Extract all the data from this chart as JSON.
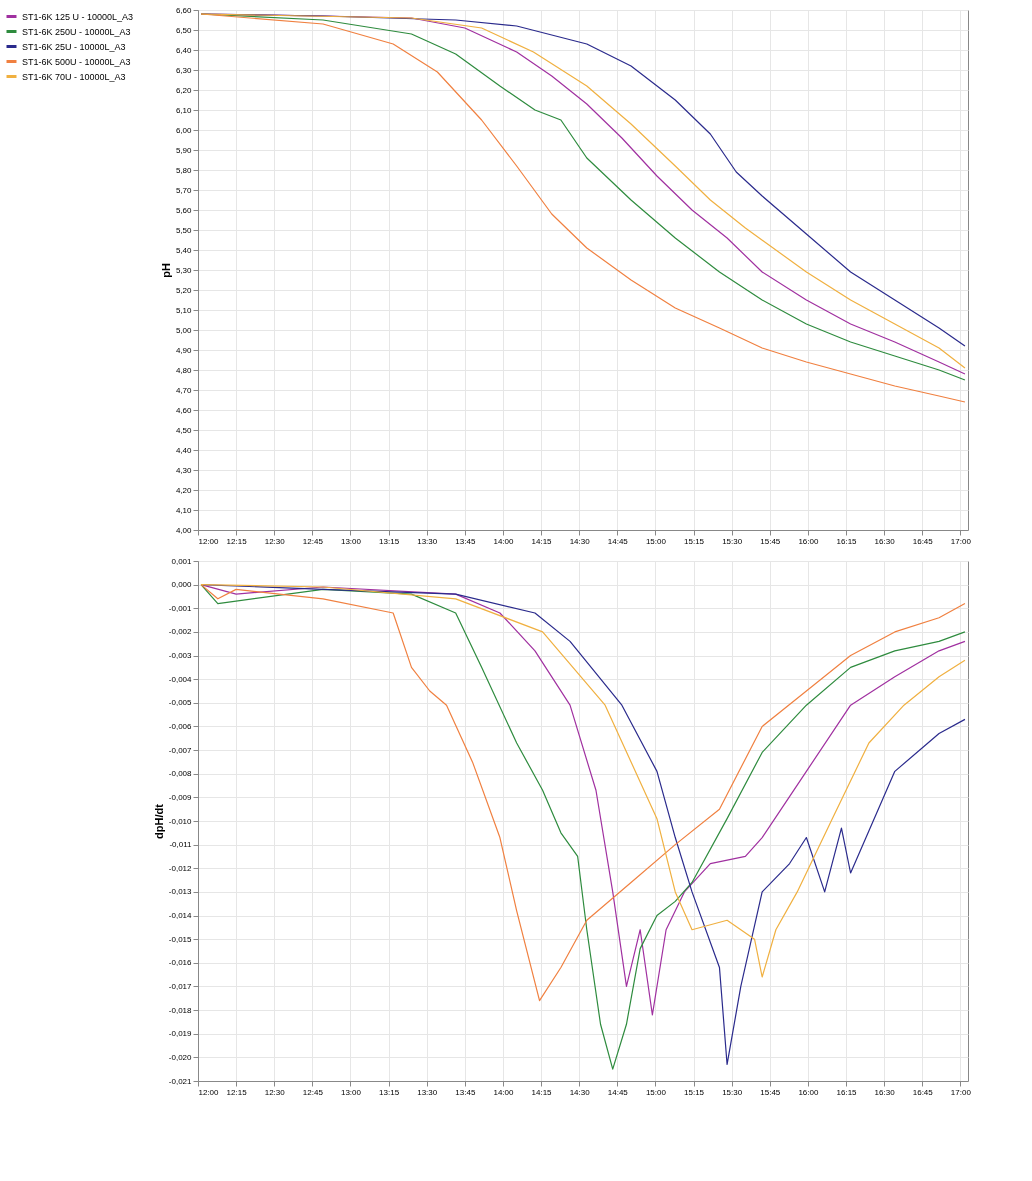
{
  "chart_data": [
    {
      "type": "line",
      "ylabel": "pH",
      "legend": "left",
      "grid": true,
      "line_style": "solid",
      "xlim": [
        12,
        17.05
      ],
      "xticks": [
        {
          "value": 12,
          "label": "12:00"
        },
        {
          "value": 12.25,
          "label": "12:15"
        },
        {
          "value": 12.5,
          "label": "12:30"
        },
        {
          "value": 12.75,
          "label": "12:45"
        },
        {
          "value": 13,
          "label": "13:00"
        },
        {
          "value": 13.25,
          "label": "13:15"
        },
        {
          "value": 13.5,
          "label": "13:30"
        },
        {
          "value": 13.75,
          "label": "13:45"
        },
        {
          "value": 14,
          "label": "14:00"
        },
        {
          "value": 14.25,
          "label": "14:15"
        },
        {
          "value": 14.5,
          "label": "14:30"
        },
        {
          "value": 14.75,
          "label": "14:45"
        },
        {
          "value": 15,
          "label": "15:00"
        },
        {
          "value": 15.25,
          "label": "15:15"
        },
        {
          "value": 15.5,
          "label": "15:30"
        },
        {
          "value": 15.75,
          "label": "15:45"
        },
        {
          "value": 16,
          "label": "16:00"
        },
        {
          "value": 16.25,
          "label": "16:15"
        },
        {
          "value": 16.5,
          "label": "16:30"
        },
        {
          "value": 16.75,
          "label": "16:45"
        },
        {
          "value": 17,
          "label": "17:00"
        }
      ],
      "ylim": [
        4.0,
        6.6
      ],
      "yticks": [
        {
          "value": 6.6,
          "label": "6,60"
        },
        {
          "value": 6.5,
          "label": "6,50"
        },
        {
          "value": 6.4,
          "label": "6,40"
        },
        {
          "value": 6.3,
          "label": "6,30"
        },
        {
          "value": 6.2,
          "label": "6,20"
        },
        {
          "value": 6.1,
          "label": "6,10"
        },
        {
          "value": 6.0,
          "label": "6,00"
        },
        {
          "value": 5.9,
          "label": "5,90"
        },
        {
          "value": 5.8,
          "label": "5,80"
        },
        {
          "value": 5.7,
          "label": "5,70"
        },
        {
          "value": 5.6,
          "label": "5,60"
        },
        {
          "value": 5.5,
          "label": "5,50"
        },
        {
          "value": 5.4,
          "label": "5,40"
        },
        {
          "value": 5.3,
          "label": "5,30"
        },
        {
          "value": 5.2,
          "label": "5,20"
        },
        {
          "value": 5.1,
          "label": "5,10"
        },
        {
          "value": 5.0,
          "label": "5,00"
        },
        {
          "value": 4.9,
          "label": "4,90"
        },
        {
          "value": 4.8,
          "label": "4,80"
        },
        {
          "value": 4.7,
          "label": "4,70"
        },
        {
          "value": 4.6,
          "label": "4,60"
        },
        {
          "value": 4.5,
          "label": "4,50"
        },
        {
          "value": 4.4,
          "label": "4,40"
        },
        {
          "value": 4.3,
          "label": "4,30"
        },
        {
          "value": 4.2,
          "label": "4,20"
        },
        {
          "value": 4.1,
          "label": "4,10"
        },
        {
          "value": 4.0,
          "label": "4,00"
        }
      ],
      "series": [
        {
          "name": "ST1-6K 125 U - 10000L_A3",
          "color": "#a030a0",
          "x": [
            12.02,
            12.82,
            13.4,
            13.75,
            14.09,
            14.32,
            14.55,
            14.78,
            15.01,
            15.24,
            15.47,
            15.7,
            15.99,
            16.28,
            16.57,
            16.86,
            17.03
          ],
          "values": [
            6.58,
            6.57,
            6.56,
            6.51,
            6.39,
            6.27,
            6.13,
            5.96,
            5.77,
            5.6,
            5.46,
            5.29,
            5.15,
            5.03,
            4.94,
            4.84,
            4.78
          ]
        },
        {
          "name": "ST1-6K 250U - 10000L_A3",
          "color": "#2e8b3e",
          "x": [
            12.02,
            12.82,
            13.4,
            13.69,
            13.98,
            14.21,
            14.38,
            14.55,
            14.84,
            15.13,
            15.42,
            15.7,
            15.99,
            16.28,
            16.57,
            16.86,
            17.03
          ],
          "values": [
            6.58,
            6.55,
            6.48,
            6.38,
            6.22,
            6.1,
            6.05,
            5.86,
            5.65,
            5.46,
            5.29,
            5.15,
            5.03,
            4.94,
            4.87,
            4.8,
            4.75
          ]
        },
        {
          "name": "ST1-6K 25U - 10000L_A3",
          "color": "#2a2a8c",
          "x": [
            12.02,
            12.82,
            13.69,
            14.09,
            14.55,
            14.84,
            15.13,
            15.36,
            15.53,
            15.7,
            15.99,
            16.28,
            16.57,
            16.86,
            17.03
          ],
          "values": [
            6.58,
            6.57,
            6.55,
            6.52,
            6.43,
            6.32,
            6.15,
            5.98,
            5.79,
            5.67,
            5.48,
            5.29,
            5.15,
            5.01,
            4.92
          ]
        },
        {
          "name": "ST1-6K 500U - 10000L_A3",
          "color": "#f08040",
          "x": [
            12.02,
            12.82,
            13.28,
            13.57,
            13.86,
            14.09,
            14.32,
            14.55,
            14.84,
            15.13,
            15.42,
            15.7,
            15.99,
            16.28,
            16.57,
            16.86,
            17.03
          ],
          "values": [
            6.58,
            6.53,
            6.43,
            6.29,
            6.05,
            5.82,
            5.58,
            5.41,
            5.25,
            5.11,
            5.01,
            4.91,
            4.84,
            4.78,
            4.72,
            4.67,
            4.64
          ]
        },
        {
          "name": "ST1-6K 70U - 10000L_A3",
          "color": "#f0b040",
          "x": [
            12.02,
            13.4,
            13.86,
            14.2,
            14.55,
            14.84,
            15.13,
            15.36,
            15.59,
            15.99,
            16.28,
            16.57,
            16.86,
            17.03
          ],
          "values": [
            6.58,
            6.56,
            6.51,
            6.39,
            6.22,
            6.03,
            5.82,
            5.65,
            5.51,
            5.29,
            5.15,
            5.03,
            4.91,
            4.81
          ]
        }
      ]
    },
    {
      "type": "line",
      "ylabel": "dpH/dt",
      "legend": "left",
      "grid": true,
      "line_style": "solid",
      "xlim": [
        12,
        17.05
      ],
      "xticks": [
        {
          "value": 12,
          "label": "12:00"
        },
        {
          "value": 12.25,
          "label": "12:15"
        },
        {
          "value": 12.5,
          "label": "12:30"
        },
        {
          "value": 12.75,
          "label": "12:45"
        },
        {
          "value": 13,
          "label": "13:00"
        },
        {
          "value": 13.25,
          "label": "13:15"
        },
        {
          "value": 13.5,
          "label": "13:30"
        },
        {
          "value": 13.75,
          "label": "13:45"
        },
        {
          "value": 14,
          "label": "14:00"
        },
        {
          "value": 14.25,
          "label": "14:15"
        },
        {
          "value": 14.5,
          "label": "14:30"
        },
        {
          "value": 14.75,
          "label": "14:45"
        },
        {
          "value": 15,
          "label": "15:00"
        },
        {
          "value": 15.25,
          "label": "15:15"
        },
        {
          "value": 15.5,
          "label": "15:30"
        },
        {
          "value": 15.75,
          "label": "15:45"
        },
        {
          "value": 16,
          "label": "16:00"
        },
        {
          "value": 16.25,
          "label": "16:15"
        },
        {
          "value": 16.5,
          "label": "16:30"
        },
        {
          "value": 16.75,
          "label": "16:45"
        },
        {
          "value": 17,
          "label": "17:00"
        }
      ],
      "ylim": [
        -0.021,
        0.001
      ],
      "yticks": [
        {
          "value": 0.001,
          "label": "0,001"
        },
        {
          "value": 0.0,
          "label": "0,000"
        },
        {
          "value": -0.001,
          "label": "-0,001"
        },
        {
          "value": -0.002,
          "label": "-0,002"
        },
        {
          "value": -0.003,
          "label": "-0,003"
        },
        {
          "value": -0.004,
          "label": "-0,004"
        },
        {
          "value": -0.005,
          "label": "-0,005"
        },
        {
          "value": -0.006,
          "label": "-0,006"
        },
        {
          "value": -0.007,
          "label": "-0,007"
        },
        {
          "value": -0.008,
          "label": "-0,008"
        },
        {
          "value": -0.009,
          "label": "-0,009"
        },
        {
          "value": -0.01,
          "label": "-0,010"
        },
        {
          "value": -0.011,
          "label": "-0,011"
        },
        {
          "value": -0.012,
          "label": "-0,012"
        },
        {
          "value": -0.013,
          "label": "-0,013"
        },
        {
          "value": -0.014,
          "label": "-0,014"
        },
        {
          "value": -0.015,
          "label": "-0,015"
        },
        {
          "value": -0.016,
          "label": "-0,016"
        },
        {
          "value": -0.017,
          "label": "-0,017"
        },
        {
          "value": -0.018,
          "label": "-0,018"
        },
        {
          "value": -0.019,
          "label": "-0,019"
        },
        {
          "value": -0.02,
          "label": "-0,020"
        },
        {
          "value": -0.021,
          "label": "-0,021"
        }
      ],
      "series": [
        {
          "name": "ST1-6K 125 U - 10000L_A3",
          "color": "#a030a0",
          "x": [
            12.02,
            12.25,
            12.82,
            13.69,
            13.98,
            14.21,
            14.44,
            14.61,
            14.72,
            14.81,
            14.9,
            14.98,
            15.07,
            15.19,
            15.36,
            15.59,
            15.7,
            15.99,
            16.28,
            16.57,
            16.86,
            17.03
          ],
          "values": [
            0.0,
            -0.0004,
            -0.0001,
            -0.0004,
            -0.0012,
            -0.0028,
            -0.0051,
            -0.0087,
            -0.013,
            -0.017,
            -0.0146,
            -0.0182,
            -0.0146,
            -0.013,
            -0.0118,
            -0.0115,
            -0.0107,
            -0.0079,
            -0.0051,
            -0.0039,
            -0.0028,
            -0.0024
          ]
        },
        {
          "name": "ST1-6K 250U - 10000L_A3",
          "color": "#2e8b3e",
          "x": [
            12.02,
            12.13,
            12.82,
            13.4,
            13.69,
            13.86,
            14.09,
            14.26,
            14.38,
            14.49,
            14.55,
            14.64,
            14.72,
            14.81,
            14.9,
            15.01,
            15.13,
            15.24,
            15.47,
            15.7,
            15.99,
            16.28,
            16.57,
            16.86,
            17.03
          ],
          "values": [
            0.0,
            -0.0008,
            -0.0002,
            -0.0004,
            -0.0012,
            -0.0035,
            -0.0067,
            -0.0087,
            -0.0105,
            -0.0115,
            -0.0146,
            -0.0186,
            -0.0205,
            -0.0186,
            -0.0154,
            -0.014,
            -0.0134,
            -0.0126,
            -0.0099,
            -0.0071,
            -0.0051,
            -0.0035,
            -0.0028,
            -0.0024,
            -0.002
          ]
        },
        {
          "name": "ST1-6K 25U - 10000L_A3",
          "color": "#2a2a8c",
          "x": [
            12.02,
            12.82,
            13.69,
            14.21,
            14.44,
            14.78,
            15.01,
            15.13,
            15.24,
            15.42,
            15.47,
            15.56,
            15.7,
            15.88,
            15.99,
            16.11,
            16.22,
            16.28,
            16.57,
            16.86,
            17.03
          ],
          "values": [
            0.0,
            -0.0002,
            -0.0004,
            -0.0012,
            -0.0024,
            -0.0051,
            -0.0079,
            -0.0107,
            -0.013,
            -0.0162,
            -0.0203,
            -0.017,
            -0.013,
            -0.0118,
            -0.0107,
            -0.013,
            -0.0103,
            -0.0122,
            -0.0079,
            -0.0063,
            -0.0057
          ]
        },
        {
          "name": "ST1-6K 500U - 10000L_A3",
          "color": "#f08040",
          "x": [
            12.02,
            12.13,
            12.25,
            12.82,
            13.28,
            13.4,
            13.52,
            13.63,
            13.8,
            13.98,
            14.09,
            14.24,
            14.38,
            14.55,
            14.84,
            15.13,
            15.42,
            15.7,
            15.99,
            16.28,
            16.57,
            16.86,
            17.03
          ],
          "values": [
            0.0,
            -0.0006,
            -0.0002,
            -0.0006,
            -0.0012,
            -0.0035,
            -0.0045,
            -0.0051,
            -0.0075,
            -0.0107,
            -0.0138,
            -0.0176,
            -0.0162,
            -0.0142,
            -0.0126,
            -0.011,
            -0.0095,
            -0.006,
            -0.0045,
            -0.003,
            -0.002,
            -0.0014,
            -0.0008
          ]
        },
        {
          "name": "ST1-6K 70U - 10000L_A3",
          "color": "#f0b040",
          "x": [
            12.02,
            12.82,
            13.69,
            14.26,
            14.67,
            15.01,
            15.13,
            15.24,
            15.47,
            15.65,
            15.7,
            15.79,
            15.93,
            16.16,
            16.4,
            16.63,
            16.86,
            17.03
          ],
          "values": [
            0.0,
            -0.0001,
            -0.0006,
            -0.002,
            -0.0051,
            -0.0099,
            -0.013,
            -0.0146,
            -0.0142,
            -0.015,
            -0.0166,
            -0.0146,
            -0.013,
            -0.0099,
            -0.0067,
            -0.0051,
            -0.0039,
            -0.0032
          ]
        }
      ]
    }
  ]
}
